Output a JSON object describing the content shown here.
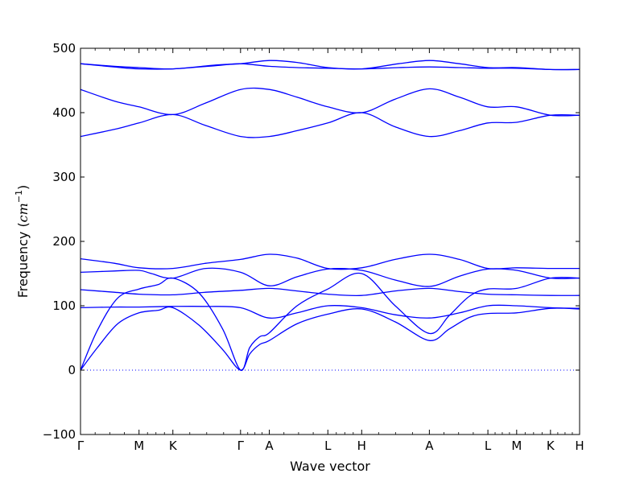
{
  "chart_data": {
    "type": "line",
    "title": "",
    "xlabel": "Wave vector",
    "ylabel": "Frequency ($cm^{-1}$)",
    "ylabel_parts": {
      "main": "Frequency (",
      "math": "cm",
      "sup": "−1",
      "close": ")"
    },
    "ylim": [
      -100,
      500
    ],
    "yticks": [
      -100,
      0,
      100,
      200,
      300,
      400,
      500
    ],
    "xlim": [
      0,
      14.75
    ],
    "grid": false,
    "zero_line": {
      "y": 0,
      "style": "dotted",
      "color": "#0000ff"
    },
    "line_color": "#0000ff",
    "high_symmetry_points": [
      {
        "label": "Γ",
        "x": 0
      },
      {
        "label": "M",
        "x": 1.73
      },
      {
        "label": "K",
        "x": 2.73
      },
      {
        "label": "Γ",
        "x": 4.73
      },
      {
        "label": "A",
        "x": 5.58
      },
      {
        "label": "L",
        "x": 7.31
      },
      {
        "label": "H",
        "x": 8.31
      },
      {
        "label": "A",
        "x": 10.31
      },
      {
        "label": "L",
        "x": 12.04
      },
      {
        "label": "M",
        "x": 12.89
      },
      {
        "label": "K",
        "x": 13.89
      },
      {
        "label": "H",
        "x": 14.75
      }
    ],
    "series": [
      {
        "values": [
          [
            0,
            476
          ],
          [
            1.0,
            472
          ],
          [
            1.73,
            470
          ],
          [
            2.73,
            468
          ],
          [
            4.0,
            474
          ],
          [
            4.73,
            476
          ],
          [
            5.58,
            481
          ],
          [
            6.4,
            478
          ],
          [
            7.31,
            470
          ],
          [
            8.31,
            468
          ],
          [
            9.4,
            476
          ],
          [
            10.31,
            481
          ],
          [
            11.2,
            476
          ],
          [
            12.04,
            470
          ],
          [
            12.89,
            470
          ],
          [
            13.89,
            467
          ],
          [
            14.75,
            467
          ]
        ]
      },
      {
        "values": [
          [
            0,
            476
          ],
          [
            1.0,
            471
          ],
          [
            1.73,
            468
          ],
          [
            2.73,
            468
          ],
          [
            4.0,
            473
          ],
          [
            4.73,
            476
          ],
          [
            5.58,
            472
          ],
          [
            6.4,
            470
          ],
          [
            7.31,
            469
          ],
          [
            8.31,
            468
          ],
          [
            9.4,
            470
          ],
          [
            10.31,
            471
          ],
          [
            11.2,
            470
          ],
          [
            12.04,
            469
          ],
          [
            12.89,
            469
          ],
          [
            13.89,
            467
          ],
          [
            14.75,
            467
          ]
        ]
      },
      {
        "values": [
          [
            0,
            436
          ],
          [
            1.0,
            418
          ],
          [
            1.73,
            409
          ],
          [
            2.73,
            397
          ],
          [
            3.7,
            415
          ],
          [
            4.73,
            436
          ],
          [
            5.58,
            436
          ],
          [
            6.4,
            424
          ],
          [
            7.31,
            409
          ],
          [
            8.31,
            400
          ],
          [
            9.3,
            421
          ],
          [
            10.31,
            437
          ],
          [
            11.2,
            424
          ],
          [
            12.04,
            409
          ],
          [
            12.89,
            409
          ],
          [
            13.89,
            396
          ],
          [
            14.75,
            396
          ]
        ]
      },
      {
        "values": [
          [
            0,
            363
          ],
          [
            1.0,
            374
          ],
          [
            1.73,
            384
          ],
          [
            2.73,
            397
          ],
          [
            3.7,
            380
          ],
          [
            4.73,
            363
          ],
          [
            5.58,
            363
          ],
          [
            6.4,
            372
          ],
          [
            7.31,
            384
          ],
          [
            8.31,
            400
          ],
          [
            9.3,
            378
          ],
          [
            10.31,
            363
          ],
          [
            11.2,
            372
          ],
          [
            12.04,
            384
          ],
          [
            12.89,
            385
          ],
          [
            13.89,
            396
          ],
          [
            14.75,
            396
          ]
        ]
      },
      {
        "values": [
          [
            0,
            173
          ],
          [
            1.0,
            166
          ],
          [
            1.73,
            159
          ],
          [
            2.73,
            158
          ],
          [
            3.7,
            166
          ],
          [
            4.73,
            172
          ],
          [
            5.58,
            180
          ],
          [
            6.4,
            174
          ],
          [
            7.31,
            158
          ],
          [
            8.31,
            159
          ],
          [
            9.3,
            172
          ],
          [
            10.31,
            180
          ],
          [
            11.2,
            172
          ],
          [
            12.04,
            158
          ],
          [
            12.89,
            159
          ],
          [
            13.89,
            158
          ],
          [
            14.75,
            158
          ]
        ]
      },
      {
        "values": [
          [
            0,
            152
          ],
          [
            1.0,
            154
          ],
          [
            1.73,
            155
          ],
          [
            2.1,
            150
          ],
          [
            2.73,
            143
          ],
          [
            3.7,
            158
          ],
          [
            4.73,
            152
          ],
          [
            5.58,
            131
          ],
          [
            6.4,
            145
          ],
          [
            7.31,
            157
          ],
          [
            8.31,
            155
          ],
          [
            9.3,
            140
          ],
          [
            10.31,
            130
          ],
          [
            11.2,
            146
          ],
          [
            12.04,
            157
          ],
          [
            12.89,
            155
          ],
          [
            13.89,
            143
          ],
          [
            14.75,
            143
          ]
        ]
      },
      {
        "values": [
          [
            0,
            0
          ],
          [
            0.5,
            62
          ],
          [
            1.1,
            112
          ],
          [
            1.73,
            126
          ],
          [
            2.3,
            133
          ],
          [
            2.73,
            143
          ],
          [
            3.5,
            120
          ],
          [
            4.2,
            64
          ],
          [
            4.73,
            0
          ],
          [
            5.0,
            35
          ],
          [
            5.3,
            52
          ],
          [
            5.58,
            58
          ],
          [
            6.4,
            100
          ],
          [
            7.31,
            126
          ],
          [
            8.31,
            150
          ],
          [
            9.3,
            100
          ],
          [
            10.31,
            57
          ],
          [
            10.9,
            85
          ],
          [
            11.5,
            115
          ],
          [
            12.04,
            126
          ],
          [
            12.89,
            127
          ],
          [
            13.89,
            143
          ],
          [
            14.75,
            143
          ]
        ]
      },
      {
        "values": [
          [
            0,
            125
          ],
          [
            1.0,
            121
          ],
          [
            1.73,
            118
          ],
          [
            2.73,
            117
          ],
          [
            3.7,
            121
          ],
          [
            4.73,
            124
          ],
          [
            5.58,
            127
          ],
          [
            6.4,
            123
          ],
          [
            7.31,
            118
          ],
          [
            8.31,
            116
          ],
          [
            9.3,
            123
          ],
          [
            10.31,
            127
          ],
          [
            11.2,
            122
          ],
          [
            12.04,
            118
          ],
          [
            12.89,
            117
          ],
          [
            13.89,
            116
          ],
          [
            14.75,
            116
          ]
        ]
      },
      {
        "values": [
          [
            0,
            97
          ],
          [
            1.0,
            98
          ],
          [
            1.73,
            98
          ],
          [
            2.73,
            99
          ],
          [
            3.7,
            99
          ],
          [
            4.73,
            97
          ],
          [
            5.58,
            81
          ],
          [
            6.4,
            89
          ],
          [
            7.31,
            100
          ],
          [
            8.31,
            97
          ],
          [
            9.3,
            86
          ],
          [
            10.31,
            81
          ],
          [
            11.2,
            89
          ],
          [
            12.04,
            100
          ],
          [
            12.89,
            100
          ],
          [
            13.89,
            97
          ],
          [
            14.75,
            96
          ]
        ]
      },
      {
        "values": [
          [
            0,
            0
          ],
          [
            0.5,
            35
          ],
          [
            1.1,
            72
          ],
          [
            1.73,
            89
          ],
          [
            2.3,
            93
          ],
          [
            2.73,
            97
          ],
          [
            3.5,
            70
          ],
          [
            4.2,
            32
          ],
          [
            4.73,
            0
          ],
          [
            5.0,
            25
          ],
          [
            5.3,
            40
          ],
          [
            5.58,
            46
          ],
          [
            6.4,
            72
          ],
          [
            7.31,
            87
          ],
          [
            8.31,
            95
          ],
          [
            9.3,
            75
          ],
          [
            10.31,
            46
          ],
          [
            10.9,
            64
          ],
          [
            11.5,
            82
          ],
          [
            12.04,
            88
          ],
          [
            12.89,
            89
          ],
          [
            13.89,
            96
          ],
          [
            14.75,
            95
          ]
        ]
      }
    ]
  }
}
